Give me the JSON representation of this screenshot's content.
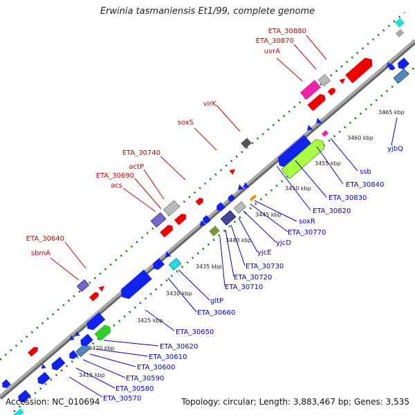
{
  "title": "Erwinia tasmaniensis Et1/99, complete genome",
  "footer": {
    "accession": "Accession: NC_010694",
    "summary": "Topology: circular; Length: 3,883,467 bp; Genes: 3,535"
  },
  "colors": {
    "backbone": "#888888",
    "forward_label": "#cc0000",
    "reverse_label": "#0000cc",
    "tick_dots": "#1a7a1a"
  },
  "ticks": [
    "3415 kbp",
    "3420 kbp",
    "3425 kbp",
    "3430 kbp",
    "3435 kbp",
    "3440 kbp",
    "3445 kbp",
    "3450 kbp",
    "3455 kbp",
    "3460 kbp",
    "3465 kbp"
  ],
  "forward_labels": [
    "sbmA",
    "ETA_30640",
    "acs",
    "ETA_30690",
    "actP",
    "ETA_30740",
    "soxS",
    "virK",
    "uvrA",
    "ETA_30870",
    "ETA_30880"
  ],
  "reverse_labels": [
    "ETA_30570",
    "ETA_30580",
    "ETA_30590",
    "ETA_30600",
    "ETA_30610",
    "ETA_30620",
    "ETA_30650",
    "ETA_30660",
    "gltP",
    "ETA_30710",
    "ETA_30720",
    "ETA_30730",
    "yjcE",
    "yjcD",
    "ETA_30770",
    "soxR",
    "ETA_30820",
    "ETA_30830",
    "ETA_30840",
    "ssb",
    "yjbQ"
  ]
}
